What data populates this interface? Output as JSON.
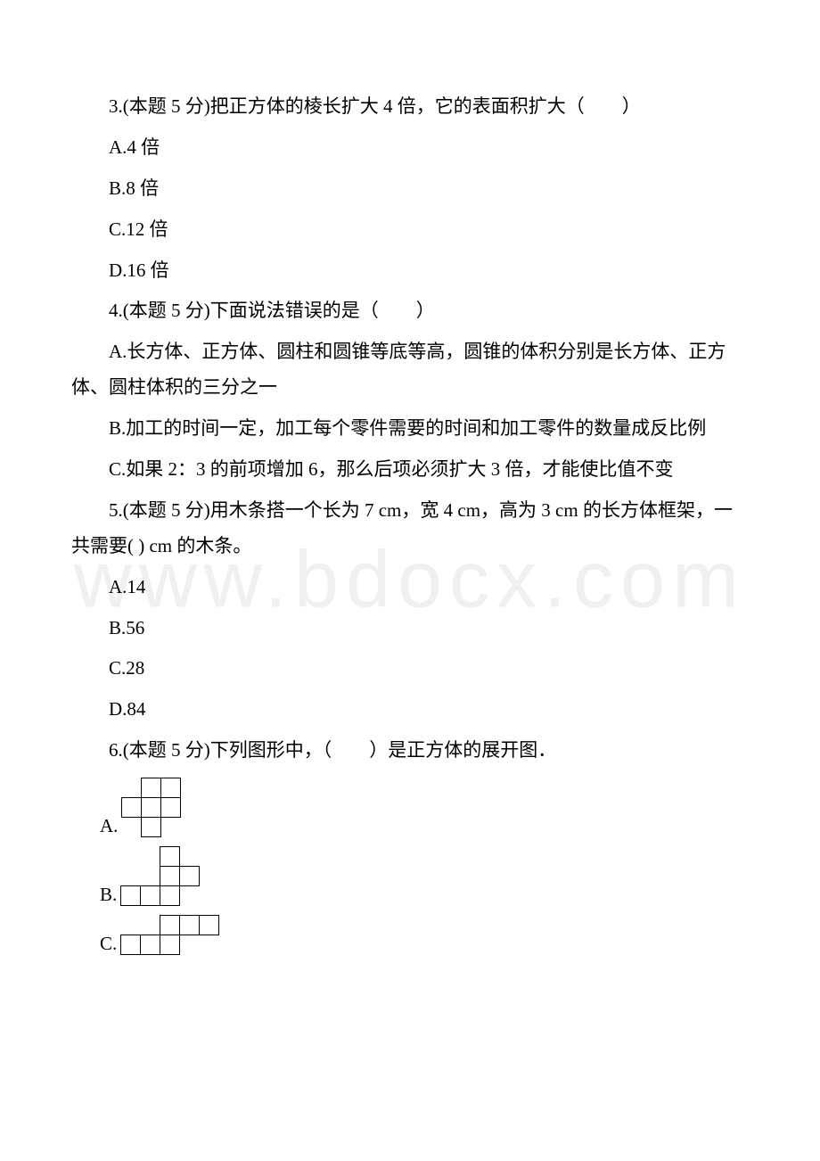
{
  "watermark": "www.bdocx.com",
  "q3": {
    "text": "3.(本题 5 分)把正方体的棱长扩大 4 倍，它的表面积扩大（　　）",
    "options": {
      "A": "A.4 倍",
      "B": "B.8 倍",
      "C": "C.12 倍",
      "D": "D.16 倍"
    }
  },
  "q4": {
    "text": "4.(本题 5 分)下面说法错误的是（　　）",
    "options": {
      "A": "A.长方体、正方体、圆柱和圆锥等底等高，圆锥的体积分别是长方体、正方体、圆柱体积的三分之一",
      "B": "B.加工的时间一定，加工每个零件需要的时间和加工零件的数量成反比例",
      "C": "C.如果 2：3 的前项增加 6，那么后项必须扩大 3 倍，才能使比值不变"
    }
  },
  "q5": {
    "text": "5.(本题 5 分)用木条搭一个长为 7 cm，宽 4 cm，高为 3 cm 的长方体框架，一共需要( ) cm 的木条。",
    "options": {
      "A": "A.14",
      "B": "B.56",
      "C": "C.28",
      "D": "D.84"
    }
  },
  "q6": {
    "text": "6.(本题 5 分)下列图形中，（　　）是正方体的展开图．",
    "options": {
      "A": "A.",
      "B": "B.",
      "C": "C."
    }
  },
  "net_style": {
    "cell": 22,
    "stroke": "#000000",
    "stroke_width": 1,
    "fill": "none"
  },
  "nets": {
    "A": {
      "cols": 3,
      "rows": 3,
      "cells": [
        [
          1,
          0
        ],
        [
          2,
          0
        ],
        [
          0,
          1
        ],
        [
          1,
          1
        ],
        [
          2,
          1
        ],
        [
          1,
          2
        ]
      ]
    },
    "B": {
      "cols": 4,
      "rows": 3,
      "cells": [
        [
          2,
          0
        ],
        [
          2,
          1
        ],
        [
          3,
          1
        ],
        [
          0,
          2
        ],
        [
          1,
          2
        ],
        [
          2,
          2
        ]
      ]
    },
    "C": {
      "cols": 5,
      "rows": 2,
      "cells": [
        [
          2,
          0
        ],
        [
          3,
          0
        ],
        [
          4,
          0
        ],
        [
          0,
          1
        ],
        [
          1,
          1
        ],
        [
          2,
          1
        ]
      ]
    }
  }
}
